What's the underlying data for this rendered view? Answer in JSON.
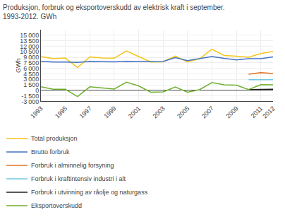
{
  "chart_data": {
    "type": "line",
    "title": "Produksjon, forbruk og eksportoverskudd av elektrisk kraft i september.\n1993-2012. GWh",
    "ylabel": "GWh",
    "x": [
      1993,
      1994,
      1995,
      1996,
      1997,
      1998,
      1999,
      2000,
      2001,
      2002,
      2003,
      2004,
      2005,
      2006,
      2007,
      2008,
      2009,
      2010,
      2011,
      2012
    ],
    "series": [
      {
        "name": "Total produksjon",
        "color": "#f5c518",
        "values": [
          9200,
          8600,
          8800,
          6200,
          9100,
          8800,
          8750,
          10700,
          9200,
          7700,
          7750,
          9300,
          7700,
          8600,
          11200,
          9500,
          9300,
          9000,
          10000,
          10600
        ]
      },
      {
        "name": "Brutto forbruk",
        "color": "#4472c4",
        "values": [
          7900,
          7700,
          7700,
          7600,
          7850,
          7800,
          7750,
          7900,
          7800,
          7800,
          7850,
          8900,
          8100,
          8700,
          9200,
          8700,
          8300,
          8600,
          8600,
          9100
        ]
      },
      {
        "name": "Forbruk i alminnelig forsyning",
        "color": "#e07020",
        "values": [
          null,
          null,
          null,
          null,
          null,
          null,
          null,
          null,
          null,
          null,
          null,
          null,
          null,
          null,
          null,
          null,
          null,
          4400,
          4800,
          4600
        ]
      },
      {
        "name": "Forbruk i kraftintensiv industri i alt",
        "color": "#70c8e0",
        "values": [
          null,
          null,
          null,
          null,
          null,
          null,
          null,
          null,
          null,
          null,
          null,
          null,
          null,
          null,
          null,
          null,
          null,
          2900,
          2900,
          2900
        ]
      },
      {
        "name": "Forbruk i utvinning av råolje og naturgass",
        "color": "#202020",
        "values": [
          null,
          null,
          null,
          null,
          null,
          null,
          null,
          null,
          null,
          null,
          null,
          null,
          null,
          null,
          null,
          null,
          null,
          200,
          300,
          300
        ]
      },
      {
        "name": "Eksportoverskudd",
        "color": "#70b030",
        "values": [
          950,
          300,
          300,
          -1700,
          950,
          650,
          350,
          2200,
          1200,
          -500,
          -400,
          900,
          -500,
          200,
          2100,
          1500,
          1400,
          200,
          1550,
          1500
        ]
      }
    ],
    "xlim": [
      1993,
      2012
    ],
    "xticks": [
      1993,
      1995,
      1997,
      1999,
      2001,
      2003,
      2005,
      2007,
      2009,
      2011,
      2012
    ],
    "ylim": [
      -3000,
      16500
    ],
    "yticks": [
      {
        "value": -3000,
        "label": "-3 000"
      },
      {
        "value": -1500,
        "label": "-1 500"
      },
      0,
      {
        "value": 1500,
        "label": "1 500"
      },
      {
        "value": 3000,
        "label": "3 000"
      },
      {
        "value": 4500,
        "label": "4 500"
      },
      {
        "value": 6000,
        "label": "6 000"
      },
      {
        "value": 7500,
        "label": "7 500"
      },
      {
        "value": 9000,
        "label": "9 000"
      },
      {
        "value": 10500,
        "label": "10 500"
      },
      {
        "value": 12000,
        "label": "12 000"
      },
      {
        "value": 13500,
        "label": "13 500"
      },
      {
        "value": 15000,
        "label": "15 000"
      }
    ],
    "grid": true,
    "legend": "bottom"
  }
}
